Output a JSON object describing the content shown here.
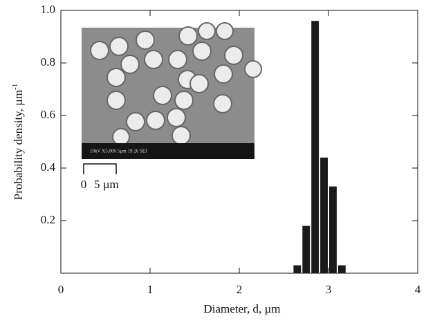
{
  "chart_data": {
    "type": "histogram",
    "xlabel": "Diameter, d, µm",
    "ylabel": {
      "text": "Probability density, µm",
      "superscript": "-1"
    },
    "bins": [
      2.6,
      2.7,
      2.8,
      2.9,
      3.0,
      3.1,
      3.2
    ],
    "values": [
      0.03,
      0.18,
      0.96,
      0.44,
      0.33,
      0.03
    ],
    "color": "#1a1a1a",
    "xlim": [
      0,
      4
    ],
    "xticks": [
      0,
      1,
      2,
      3,
      4
    ],
    "ylim": [
      0,
      1
    ],
    "yticks": [
      0.2,
      0.4,
      0.6,
      0.8,
      {
        "value": 1,
        "label": "1.0"
      }
    ],
    "inset": {
      "caption": "10kV  X5,000  5µm   19 26 SEI",
      "scale_start": "0",
      "scale_end": "5 µm"
    }
  }
}
